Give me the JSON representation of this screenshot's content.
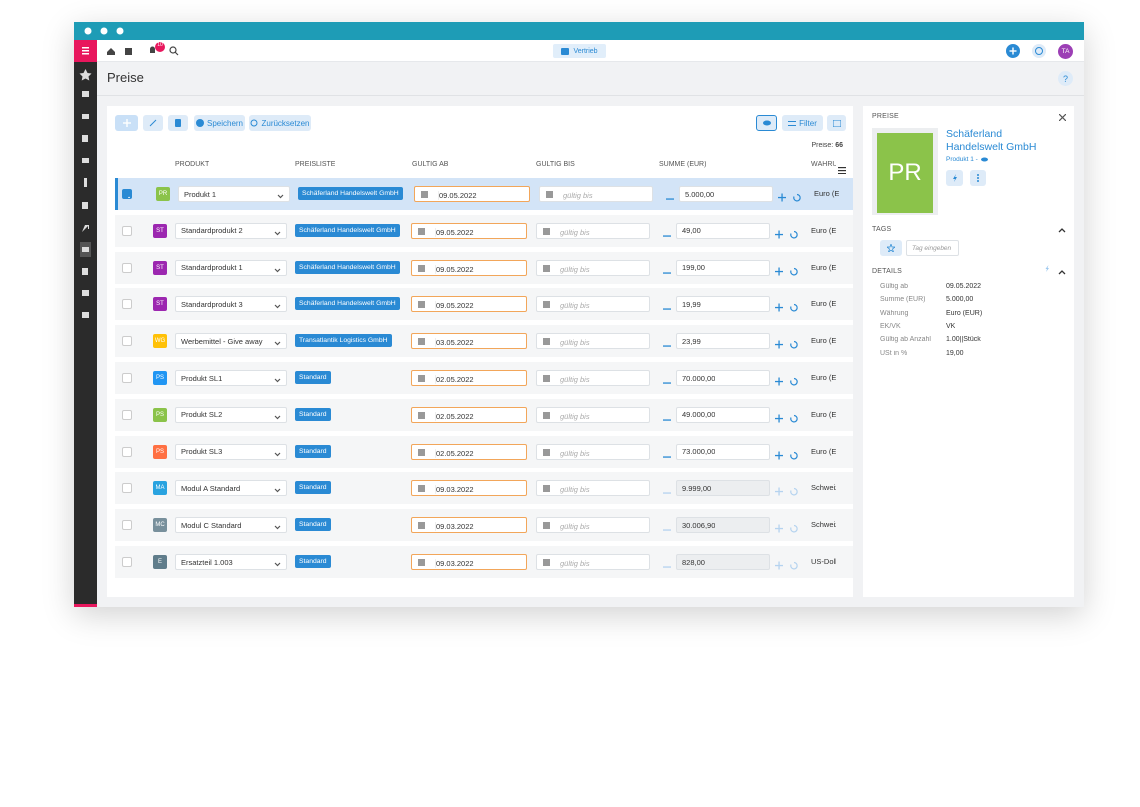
{
  "topbar": {
    "module": "Vertrieb",
    "notifications": "10",
    "user": "TA"
  },
  "header": {
    "title": "Preise",
    "help": "?"
  },
  "toolbar": {
    "save": "Speichern",
    "reset": "Zurücksetzen",
    "filter": "Filter",
    "count_label": "Preise:",
    "count": "66"
  },
  "table": {
    "columns": [
      "PRODUKT",
      "PREISLISTE",
      "GÜLTIG AB",
      "GÜLTIG BIS",
      "SUMME (EUR)",
      "WÄHRUNG"
    ],
    "rows": [
      {
        "badge": "PR",
        "badge_color": "#8bc34a",
        "product": "Produkt 1",
        "pricelist": "Schäferland Handelswelt GmbH",
        "valid_from": "09.05.2022",
        "valid_to": "gültig bis",
        "sum": "5.000,00",
        "currency": "Euro (EUR)",
        "selected": true,
        "locked": false
      },
      {
        "badge": "ST",
        "badge_color": "#9c27b0",
        "product": "Standardprodukt 2",
        "pricelist": "Schäferland Handelswelt GmbH",
        "valid_from": "09.05.2022",
        "valid_to": "gültig bis",
        "sum": "49,00",
        "currency": "Euro (EUR)",
        "selected": false,
        "locked": false
      },
      {
        "badge": "ST",
        "badge_color": "#9c27b0",
        "product": "Standardprodukt 1",
        "pricelist": "Schäferland Handelswelt GmbH",
        "valid_from": "09.05.2022",
        "valid_to": "gültig bis",
        "sum": "199,00",
        "currency": "Euro (EUR)",
        "selected": false,
        "locked": false
      },
      {
        "badge": "ST",
        "badge_color": "#9c27b0",
        "product": "Standardprodukt 3",
        "pricelist": "Schäferland Handelswelt GmbH",
        "valid_from": "09.05.2022",
        "valid_to": "gültig bis",
        "sum": "19,99",
        "currency": "Euro (EUR)",
        "selected": false,
        "locked": false
      },
      {
        "badge": "WG",
        "badge_color": "#ffc107",
        "product": "Werbemittel - Give away",
        "pricelist": "Transatlantik Logistics GmbH",
        "valid_from": "03.05.2022",
        "valid_to": "gültig bis",
        "sum": "23,99",
        "currency": "Euro (EUR)",
        "selected": false,
        "locked": false
      },
      {
        "badge": "PS",
        "badge_color": "#2196f3",
        "product": "Produkt SL1",
        "pricelist": "Standard",
        "valid_from": "02.05.2022",
        "valid_to": "gültig bis",
        "sum": "70.000,00",
        "currency": "Euro (EUR)",
        "selected": false,
        "locked": false
      },
      {
        "badge": "PS",
        "badge_color": "#8bc34a",
        "product": "Produkt SL2",
        "pricelist": "Standard",
        "valid_from": "02.05.2022",
        "valid_to": "gültig bis",
        "sum": "49.000,00",
        "currency": "Euro (EUR)",
        "selected": false,
        "locked": false
      },
      {
        "badge": "PS",
        "badge_color": "#ff7043",
        "product": "Produkt SL3",
        "pricelist": "Standard",
        "valid_from": "02.05.2022",
        "valid_to": "gültig bis",
        "sum": "73.000,00",
        "currency": "Euro (EUR)",
        "selected": false,
        "locked": false
      },
      {
        "badge": "MA",
        "badge_color": "#29a3e0",
        "product": "Modul A Standard",
        "pricelist": "Standard",
        "valid_from": "09.03.2022",
        "valid_to": "gültig bis",
        "sum": "9.999,00",
        "currency": "Schweizer Franken",
        "selected": false,
        "locked": true
      },
      {
        "badge": "MC",
        "badge_color": "#78909c",
        "product": "Modul C Standard",
        "pricelist": "Standard",
        "valid_from": "09.03.2022",
        "valid_to": "gültig bis",
        "sum": "30.006,90",
        "currency": "Schweizer Franken",
        "selected": false,
        "locked": true
      },
      {
        "badge": "E",
        "badge_color": "#607d8b",
        "product": "Ersatzteil 1.003",
        "pricelist": "Standard",
        "valid_from": "09.03.2022",
        "valid_to": "gültig bis",
        "sum": "828,00",
        "currency": "US-Dollar",
        "selected": false,
        "locked": true
      }
    ]
  },
  "detail": {
    "section": "PREISE",
    "avatar": "PR",
    "avatar_color": "#8bc34a",
    "title": "Schäferland Handelswelt GmbH",
    "subtitle": "Produkt 1 -",
    "tags_heading": "TAGS",
    "tag_placeholder": "Tag eingeben",
    "details_heading": "DETAILS",
    "fields": [
      {
        "label": "Gültig ab",
        "value": "09.05.2022"
      },
      {
        "label": "Summe (EUR)",
        "value": "5.000,00"
      },
      {
        "label": "Währung",
        "value": "Euro (EUR)"
      },
      {
        "label": "EK/VK",
        "value": "VK"
      },
      {
        "label": "Gültig ab Anzahl",
        "value": "1.00||Stück"
      },
      {
        "label": "USt in %",
        "value": "19,00"
      }
    ]
  }
}
